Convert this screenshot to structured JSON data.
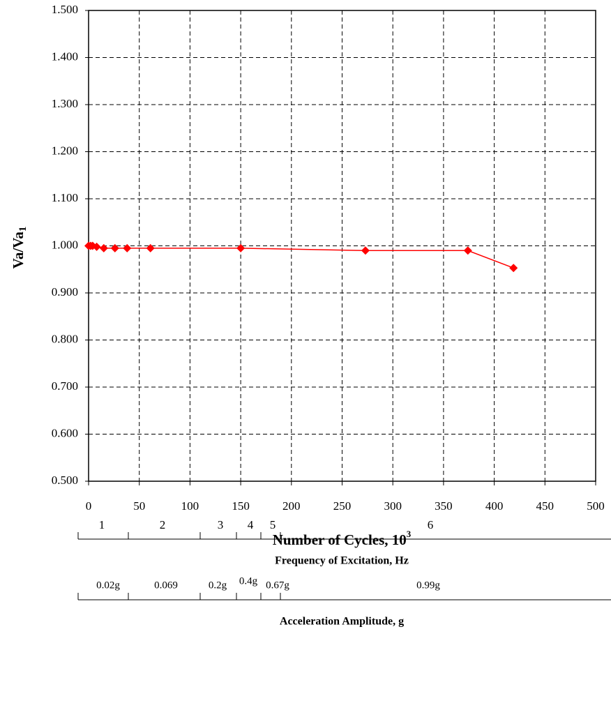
{
  "chart_data": {
    "type": "line",
    "xlabel": [
      "Number of Cycles, 10",
      "3"
    ],
    "ylabel": [
      "Va/Va",
      "1"
    ],
    "x": [
      0,
      2,
      4,
      8,
      15,
      26,
      38,
      61,
      150,
      273,
      374,
      419
    ],
    "series": [
      {
        "color": "#ff0000",
        "values": [
          1.0,
          1.0,
          1.0,
          0.998,
          0.995,
          0.995,
          0.995,
          0.995,
          0.995,
          0.99,
          0.99,
          0.953
        ]
      }
    ],
    "xlim": [
      0,
      500
    ],
    "xticks": [
      0,
      50,
      100,
      150,
      200,
      250,
      300,
      350,
      400,
      450,
      500
    ],
    "ylim": [
      0.5,
      1.5
    ],
    "yticks": [
      {
        "value": 0.5,
        "label": "0.500"
      },
      {
        "value": 0.6,
        "label": "0.600"
      },
      {
        "value": 0.7,
        "label": "0.700"
      },
      {
        "value": 0.8,
        "label": "0.800"
      },
      {
        "value": 0.9,
        "label": "0.900"
      },
      {
        "value": 1.0,
        "label": "1.000"
      },
      {
        "value": 1.1,
        "label": "1.100"
      },
      {
        "value": 1.2,
        "label": "1.200"
      },
      {
        "value": 1.3,
        "label": "1.300"
      },
      {
        "value": 1.4,
        "label": "1.400"
      },
      {
        "value": 1.5,
        "label": "1.500"
      }
    ],
    "grid": true,
    "annotations": {
      "frequency": {
        "title": "Frequency of Excitation, Hz",
        "labels": [
          "1",
          "2",
          "3",
          "4",
          "5",
          "6"
        ]
      },
      "acceleration": {
        "title": "Acceleration Amplitude, g",
        "labels": [
          "0.02g",
          "0.069",
          "0.2g",
          "0.4g",
          "0.67g",
          "0.99g"
        ]
      }
    }
  }
}
